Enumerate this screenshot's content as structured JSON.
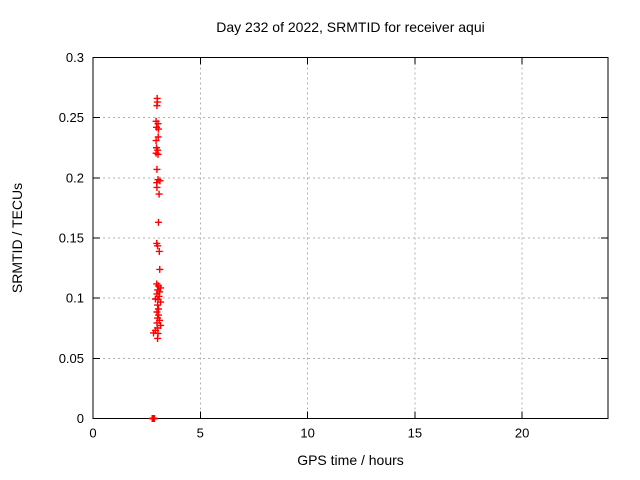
{
  "window": {
    "background_color": "#ffffff",
    "text_color": "#000000"
  },
  "chart_data": {
    "type": "scatter",
    "title": "Day 232 of 2022, SRMTID for receiver aqui",
    "xlabel": "GPS time / hours",
    "ylabel": "SRMTID / TECUs",
    "xlim": [
      0,
      24
    ],
    "ylim": [
      0,
      0.3
    ],
    "x_ticks": {
      "values": [
        0,
        5,
        10,
        15,
        20
      ],
      "labels": [
        "0",
        "5",
        "10",
        "15",
        "20"
      ]
    },
    "y_ticks": {
      "values": [
        0,
        0.05,
        0.1,
        0.15,
        0.2,
        0.25,
        0.3
      ],
      "labels": [
        "0",
        "0.05",
        "0.1",
        "0.15",
        "0.2",
        "0.25",
        "0.3"
      ]
    },
    "grid": {
      "on": true,
      "style": "dashed",
      "color": "#b0b0b0"
    },
    "border_color": "#000000",
    "legend": "none",
    "marker": {
      "shape": "plus",
      "color": "#ff0000",
      "size": 7
    },
    "series": [
      {
        "name": "SRMTID",
        "points": [
          [
            2.99,
            0.266
          ],
          [
            3.0,
            0.263
          ],
          [
            2.98,
            0.26
          ],
          [
            2.94,
            0.247
          ],
          [
            3.03,
            0.245
          ],
          [
            2.96,
            0.242
          ],
          [
            3.05,
            0.2405
          ],
          [
            3.04,
            0.234
          ],
          [
            2.94,
            0.231
          ],
          [
            2.96,
            0.225
          ],
          [
            3.01,
            0.223
          ],
          [
            2.94,
            0.2205
          ],
          [
            3.03,
            0.2195
          ],
          [
            2.98,
            0.207
          ],
          [
            3.03,
            0.1985
          ],
          [
            3.12,
            0.1975
          ],
          [
            2.97,
            0.196
          ],
          [
            2.98,
            0.192
          ],
          [
            3.08,
            0.1865
          ],
          [
            3.05,
            0.163
          ],
          [
            2.97,
            0.1455
          ],
          [
            3.01,
            0.1435
          ],
          [
            3.09,
            0.1388
          ],
          [
            3.11,
            0.1239
          ],
          [
            2.97,
            0.1118
          ],
          [
            3.05,
            0.1102
          ],
          [
            3.15,
            0.1085
          ],
          [
            3.01,
            0.1068
          ],
          [
            3.1,
            0.1052
          ],
          [
            2.98,
            0.1035
          ],
          [
            3.08,
            0.1014
          ],
          [
            2.91,
            0.0993
          ],
          [
            3.03,
            0.0989
          ],
          [
            3.15,
            0.0968
          ],
          [
            3.01,
            0.0943
          ],
          [
            3.05,
            0.091
          ],
          [
            2.98,
            0.0885
          ],
          [
            3.05,
            0.086
          ],
          [
            3.01,
            0.0835
          ],
          [
            3.1,
            0.0815
          ],
          [
            2.98,
            0.0794
          ],
          [
            3.15,
            0.0773
          ],
          [
            3.01,
            0.0752
          ],
          [
            2.91,
            0.0732
          ],
          [
            2.82,
            0.0711
          ],
          [
            3.03,
            0.0707
          ],
          [
            3.01,
            0.0665
          ],
          [
            2.76,
            0
          ],
          [
            2.78,
            0
          ],
          [
            2.8,
            0
          ],
          [
            2.82,
            0
          ],
          [
            2.84,
            0
          ],
          [
            2.86,
            0
          ]
        ]
      }
    ]
  }
}
